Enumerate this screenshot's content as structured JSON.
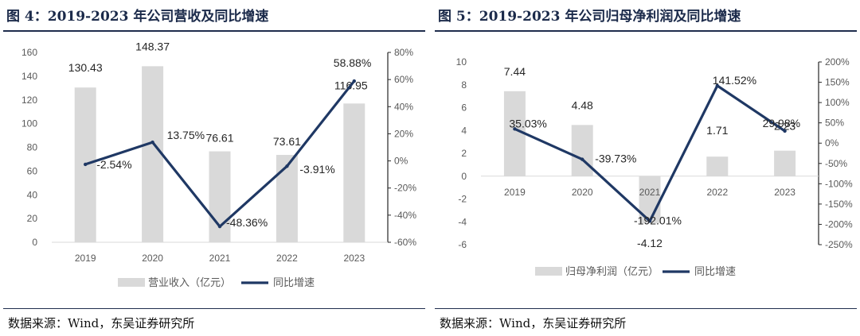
{
  "charts": [
    {
      "title": "图 4：2019-2023 年公司营收及同比增速",
      "source": "数据来源：Wind，东吴证券研究所",
      "chart_data": {
        "type": "bar",
        "categories": [
          "2019",
          "2020",
          "2021",
          "2022",
          "2023"
        ],
        "series": [
          {
            "name": "营业收入（亿元）",
            "type": "bar",
            "axis": "left",
            "color": "#d9d9d9",
            "values": [
              130.43,
              148.37,
              76.61,
              73.61,
              116.95
            ],
            "labels": [
              "130.43",
              "148.37",
              "76.61",
              "73.61",
              "116.95"
            ]
          },
          {
            "name": "同比增速",
            "type": "line",
            "axis": "right",
            "color": "#1f3864",
            "values": [
              -2.54,
              13.75,
              -48.36,
              -3.91,
              58.88
            ],
            "labels": [
              "-2.54%",
              "13.75%",
              "-48.36%",
              "-3.91%",
              "58.88%"
            ]
          }
        ],
        "y_left": {
          "min": 0,
          "max": 160,
          "ticks": [
            "0",
            "20",
            "40",
            "60",
            "80",
            "100",
            "120",
            "140",
            "160"
          ]
        },
        "y_right": {
          "min": -60,
          "max": 80,
          "ticks": [
            "-60%",
            "-40%",
            "-20%",
            "0%",
            "20%",
            "40%",
            "60%",
            "80%"
          ]
        },
        "grid": false,
        "legend_position": "bottom"
      }
    },
    {
      "title": "图 5：2019-2023 年公司归母净利润及同比增速",
      "source": "数据来源：Wind，东吴证券研究所",
      "chart_data": {
        "type": "bar",
        "categories": [
          "2019",
          "2020",
          "2021",
          "2022",
          "2023"
        ],
        "series": [
          {
            "name": "归母净利润（亿元）",
            "type": "bar",
            "axis": "left",
            "color": "#d9d9d9",
            "values": [
              7.44,
              4.48,
              -4.12,
              1.71,
              2.23
            ],
            "labels": [
              "7.44",
              "4.48",
              "-4.12",
              "1.71",
              "2.23"
            ]
          },
          {
            "name": "同比增速",
            "type": "line",
            "axis": "right",
            "color": "#1f3864",
            "values": [
              35.03,
              -39.73,
              -192.01,
              141.52,
              29.98
            ],
            "labels": [
              "35.03%",
              "-39.73%",
              "-192.01%",
              "141.52%",
              "29.98%"
            ]
          }
        ],
        "y_left": {
          "min": -6,
          "max": 10,
          "ticks": [
            "-6",
            "-4",
            "-2",
            "0",
            "2",
            "4",
            "6",
            "8",
            "10"
          ]
        },
        "y_right": {
          "min": -250,
          "max": 200,
          "ticks": [
            "-250%",
            "-200%",
            "-150%",
            "-100%",
            "-50%",
            "0%",
            "50%",
            "100%",
            "150%",
            "200%"
          ]
        },
        "grid": false,
        "legend_position": "bottom"
      }
    }
  ]
}
